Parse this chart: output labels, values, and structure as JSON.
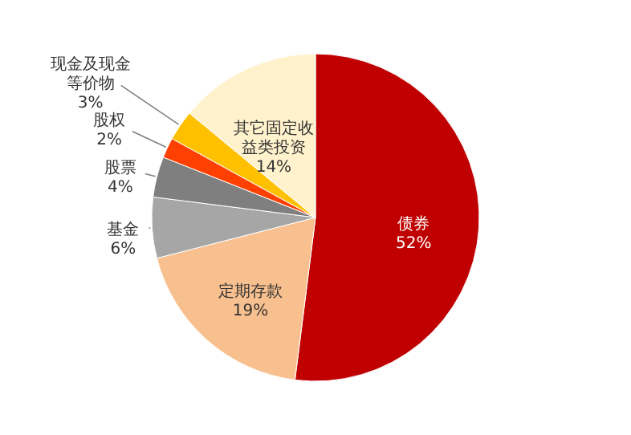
{
  "chart_data": {
    "type": "pie",
    "categories": [
      "债券",
      "定期存款",
      "基金",
      "股票",
      "股权",
      "现金及现金等价物",
      "其它固定收益类投资"
    ],
    "values": [
      52,
      19,
      6,
      4,
      2,
      3,
      14
    ],
    "value_labels": [
      "52%",
      "19%",
      "6%",
      "4%",
      "2%",
      "3%",
      "14%"
    ],
    "colors": [
      "#c00000",
      "#f9c08f",
      "#a6a6a6",
      "#7f7f7f",
      "#ff4000",
      "#ffc000",
      "#fff2cc"
    ]
  }
}
